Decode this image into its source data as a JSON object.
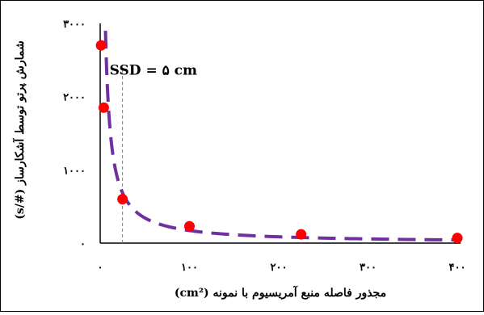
{
  "chart_data": {
    "type": "scatter",
    "xlabel": "مجذور فاصله منبع آمریسیوم با نمونه (cm²)",
    "ylabel": "شمارش پرتو توسط آشکارساز (#/s)",
    "x_ticks": [
      0,
      100,
      200,
      300,
      400
    ],
    "x_tick_labels": [
      "۰",
      "۱۰۰",
      "۲۰۰",
      "۳۰۰",
      "۴۰۰"
    ],
    "y_ticks": [
      0,
      1000,
      2000,
      3000
    ],
    "y_tick_labels": [
      "۰",
      "۱۰۰۰",
      "۲۰۰۰",
      "۳۰۰۰"
    ],
    "xlim": [
      0,
      400
    ],
    "ylim": [
      0,
      3000
    ],
    "grid": false,
    "series": [
      {
        "kind": "points",
        "x": [
          1,
          4,
          25,
          100,
          225,
          400
        ],
        "y": [
          2700,
          1850,
          600,
          230,
          120,
          70
        ]
      },
      {
        "kind": "fit-curve",
        "style": "dashed",
        "model": "y = a / x"
      }
    ],
    "annotations": [
      {
        "text": "SSD = ۵ cm",
        "vline_x": 25,
        "style": "dashed"
      }
    ],
    "colors": {
      "points": "#ff0000",
      "curve": "#7030a0",
      "axes": "#000000",
      "vline": "#7f7f7f"
    }
  }
}
